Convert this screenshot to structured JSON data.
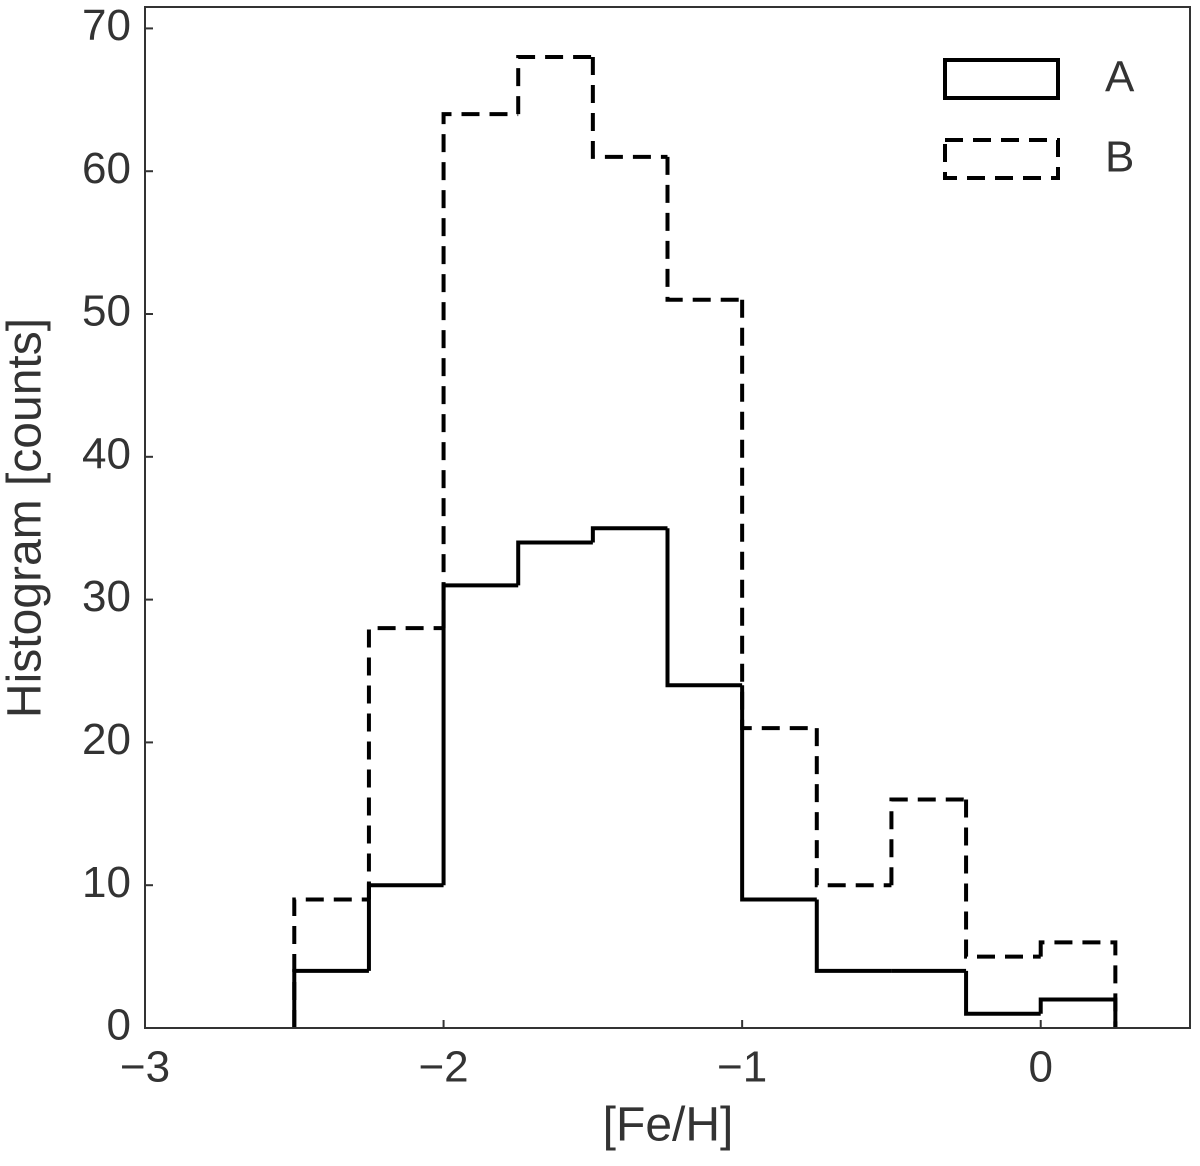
{
  "chart_data": {
    "type": "histogram",
    "xlabel": "[Fe/H]",
    "ylabel": "Histogram [counts]",
    "bins": [
      -2.5,
      -2.25,
      -2.0,
      -1.75,
      -1.5,
      -1.25,
      -1.0,
      -0.75,
      -0.5,
      -0.25,
      0.0,
      0.25
    ],
    "series": [
      {
        "name": "A",
        "color": "#000000",
        "dash": "solid",
        "values": [
          4,
          10,
          31,
          34,
          35,
          24,
          9,
          4,
          4,
          1,
          2
        ]
      },
      {
        "name": "B",
        "color": "#000000",
        "dash": "dashed",
        "values": [
          9,
          28,
          64,
          68,
          61,
          51,
          21,
          10,
          16,
          5,
          6
        ]
      }
    ],
    "xlim": [
      -3,
      0.5
    ],
    "ylim": [
      0,
      71.5
    ],
    "xticks": [
      {
        "value": -3,
        "label": "−3"
      },
      {
        "value": -2,
        "label": "−2"
      },
      {
        "value": -1,
        "label": "−1"
      },
      0
    ],
    "yticks": [
      0,
      10,
      20,
      30,
      40,
      50,
      60,
      70
    ],
    "grid": false,
    "legend": "upper right"
  }
}
